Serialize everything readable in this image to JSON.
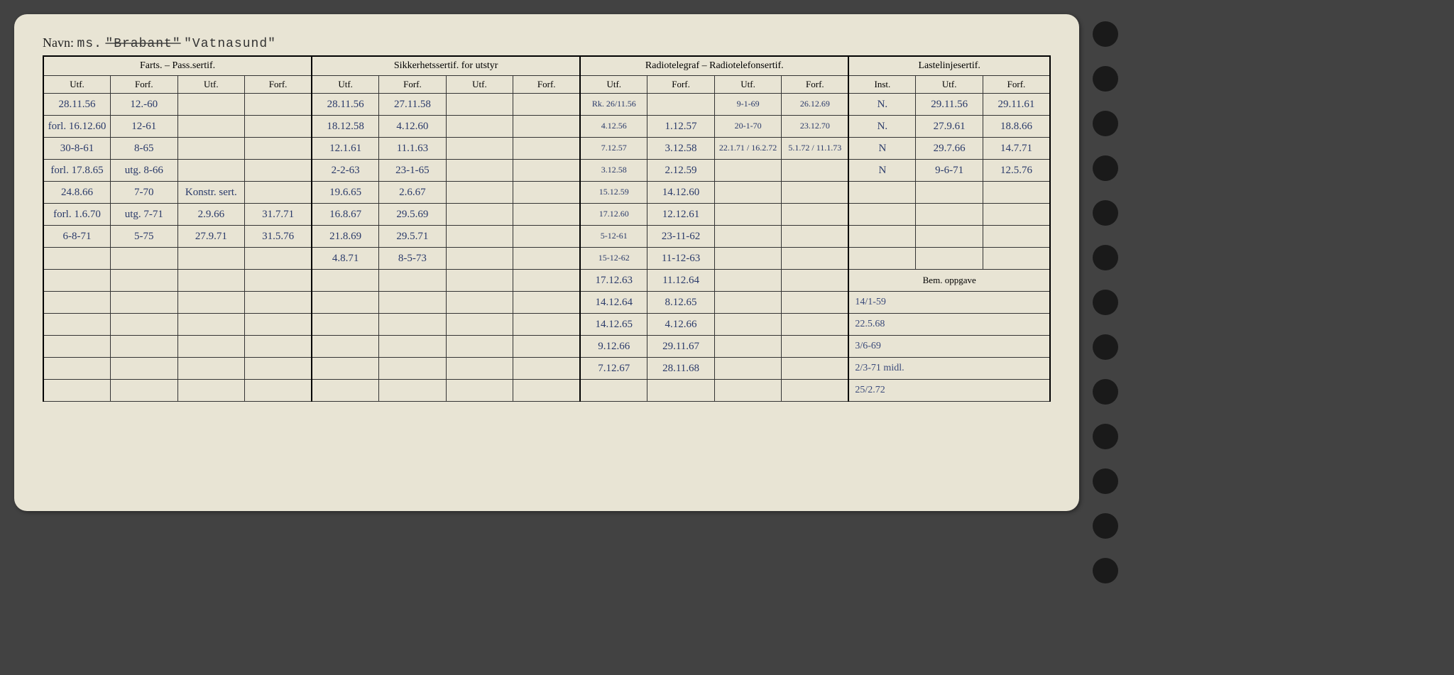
{
  "name_label": "Navn:",
  "name_typed_prefix": "ms.",
  "name_struck": "\"Brabant\"",
  "name_current": "\"Vatnasund\"",
  "groups": [
    {
      "title": "Farts. – Pass.sertif.",
      "cols": [
        "Utf.",
        "Forf.",
        "Utf.",
        "Forf."
      ]
    },
    {
      "title": "Sikkerhetssertif. for utstyr",
      "cols": [
        "Utf.",
        "Forf.",
        "Utf.",
        "Forf."
      ]
    },
    {
      "title": "Radiotelegraf – Radiotelefonsertif.",
      "cols": [
        "Utf.",
        "Forf.",
        "Utf.",
        "Forf."
      ]
    },
    {
      "title": "Lastelinjesertif.",
      "cols": [
        "Inst.",
        "Utf.",
        "Forf."
      ]
    }
  ],
  "bem_label": "Bem. oppgave",
  "rows": [
    {
      "a": [
        "28.11.56",
        "12.-60",
        "",
        ""
      ],
      "b": [
        "28.11.56",
        "27.11.58",
        "",
        ""
      ],
      "c": [
        "Rk. 26/11.56",
        "",
        "9-1-69",
        "26.12.69"
      ],
      "d": [
        "N.",
        "29.11.56",
        "29.11.61"
      ]
    },
    {
      "a": [
        "forl. 16.12.60",
        "12-61",
        "",
        ""
      ],
      "b": [
        "18.12.58",
        "4.12.60",
        "",
        ""
      ],
      "c": [
        "4.12.56",
        "1.12.57",
        "20-1-70",
        "23.12.70"
      ],
      "d": [
        "N.",
        "27.9.61",
        "18.8.66"
      ]
    },
    {
      "a": [
        "30-8-61",
        "8-65",
        "",
        ""
      ],
      "b": [
        "12.1.61",
        "11.1.63",
        "",
        ""
      ],
      "c": [
        "7.12.57",
        "3.12.58",
        "22.1.71 / 16.2.72",
        "5.1.72 / 11.1.73"
      ],
      "d": [
        "N",
        "29.7.66",
        "14.7.71"
      ]
    },
    {
      "a": [
        "forl. 17.8.65",
        "utg. 8-66",
        "",
        ""
      ],
      "b": [
        "2-2-63",
        "23-1-65",
        "",
        ""
      ],
      "c": [
        "3.12.58",
        "2.12.59",
        "",
        ""
      ],
      "d": [
        "N",
        "9-6-71",
        "12.5.76"
      ]
    },
    {
      "a": [
        "24.8.66",
        "7-70",
        "Konstr. sert.",
        ""
      ],
      "b": [
        "19.6.65",
        "2.6.67",
        "",
        ""
      ],
      "c": [
        "15.12.59",
        "14.12.60",
        "",
        ""
      ],
      "d": [
        "",
        "",
        ""
      ]
    },
    {
      "a": [
        "forl. 1.6.70",
        "utg. 7-71",
        "2.9.66",
        "31.7.71"
      ],
      "b": [
        "16.8.67",
        "29.5.69",
        "",
        ""
      ],
      "c": [
        "17.12.60",
        "12.12.61",
        "",
        ""
      ],
      "d": [
        "",
        "",
        ""
      ]
    },
    {
      "a": [
        "6-8-71",
        "5-75",
        "27.9.71",
        "31.5.76"
      ],
      "b": [
        "21.8.69",
        "29.5.71",
        "",
        ""
      ],
      "c": [
        "5-12-61",
        "23-11-62",
        "",
        ""
      ],
      "d": [
        "",
        "",
        ""
      ]
    },
    {
      "a": [
        "",
        "",
        "",
        ""
      ],
      "b": [
        "4.8.71",
        "8-5-73",
        "",
        ""
      ],
      "c": [
        "15-12-62",
        "11-12-63",
        "",
        ""
      ],
      "d": [
        "",
        "",
        ""
      ]
    }
  ],
  "tail_c": [
    [
      "17.12.63",
      "11.12.64",
      "",
      ""
    ],
    [
      "14.12.64",
      "8.12.65",
      "",
      ""
    ],
    [
      "14.12.65",
      "4.12.66",
      "",
      ""
    ],
    [
      "9.12.66",
      "29.11.67",
      "",
      ""
    ],
    [
      "7.12.67",
      "28.11.68",
      "",
      ""
    ],
    [
      "",
      "",
      "",
      ""
    ]
  ],
  "bem_rows": [
    "",
    "14/1-59",
    "22.5.68",
    "3/6-69",
    "2/3-71   midl.",
    "25/2.72"
  ],
  "colors": {
    "card_bg": "#e8e4d4",
    "ink_print": "#222222",
    "ink_hand": "#2a3a6a",
    "page_bg": "#424242"
  }
}
